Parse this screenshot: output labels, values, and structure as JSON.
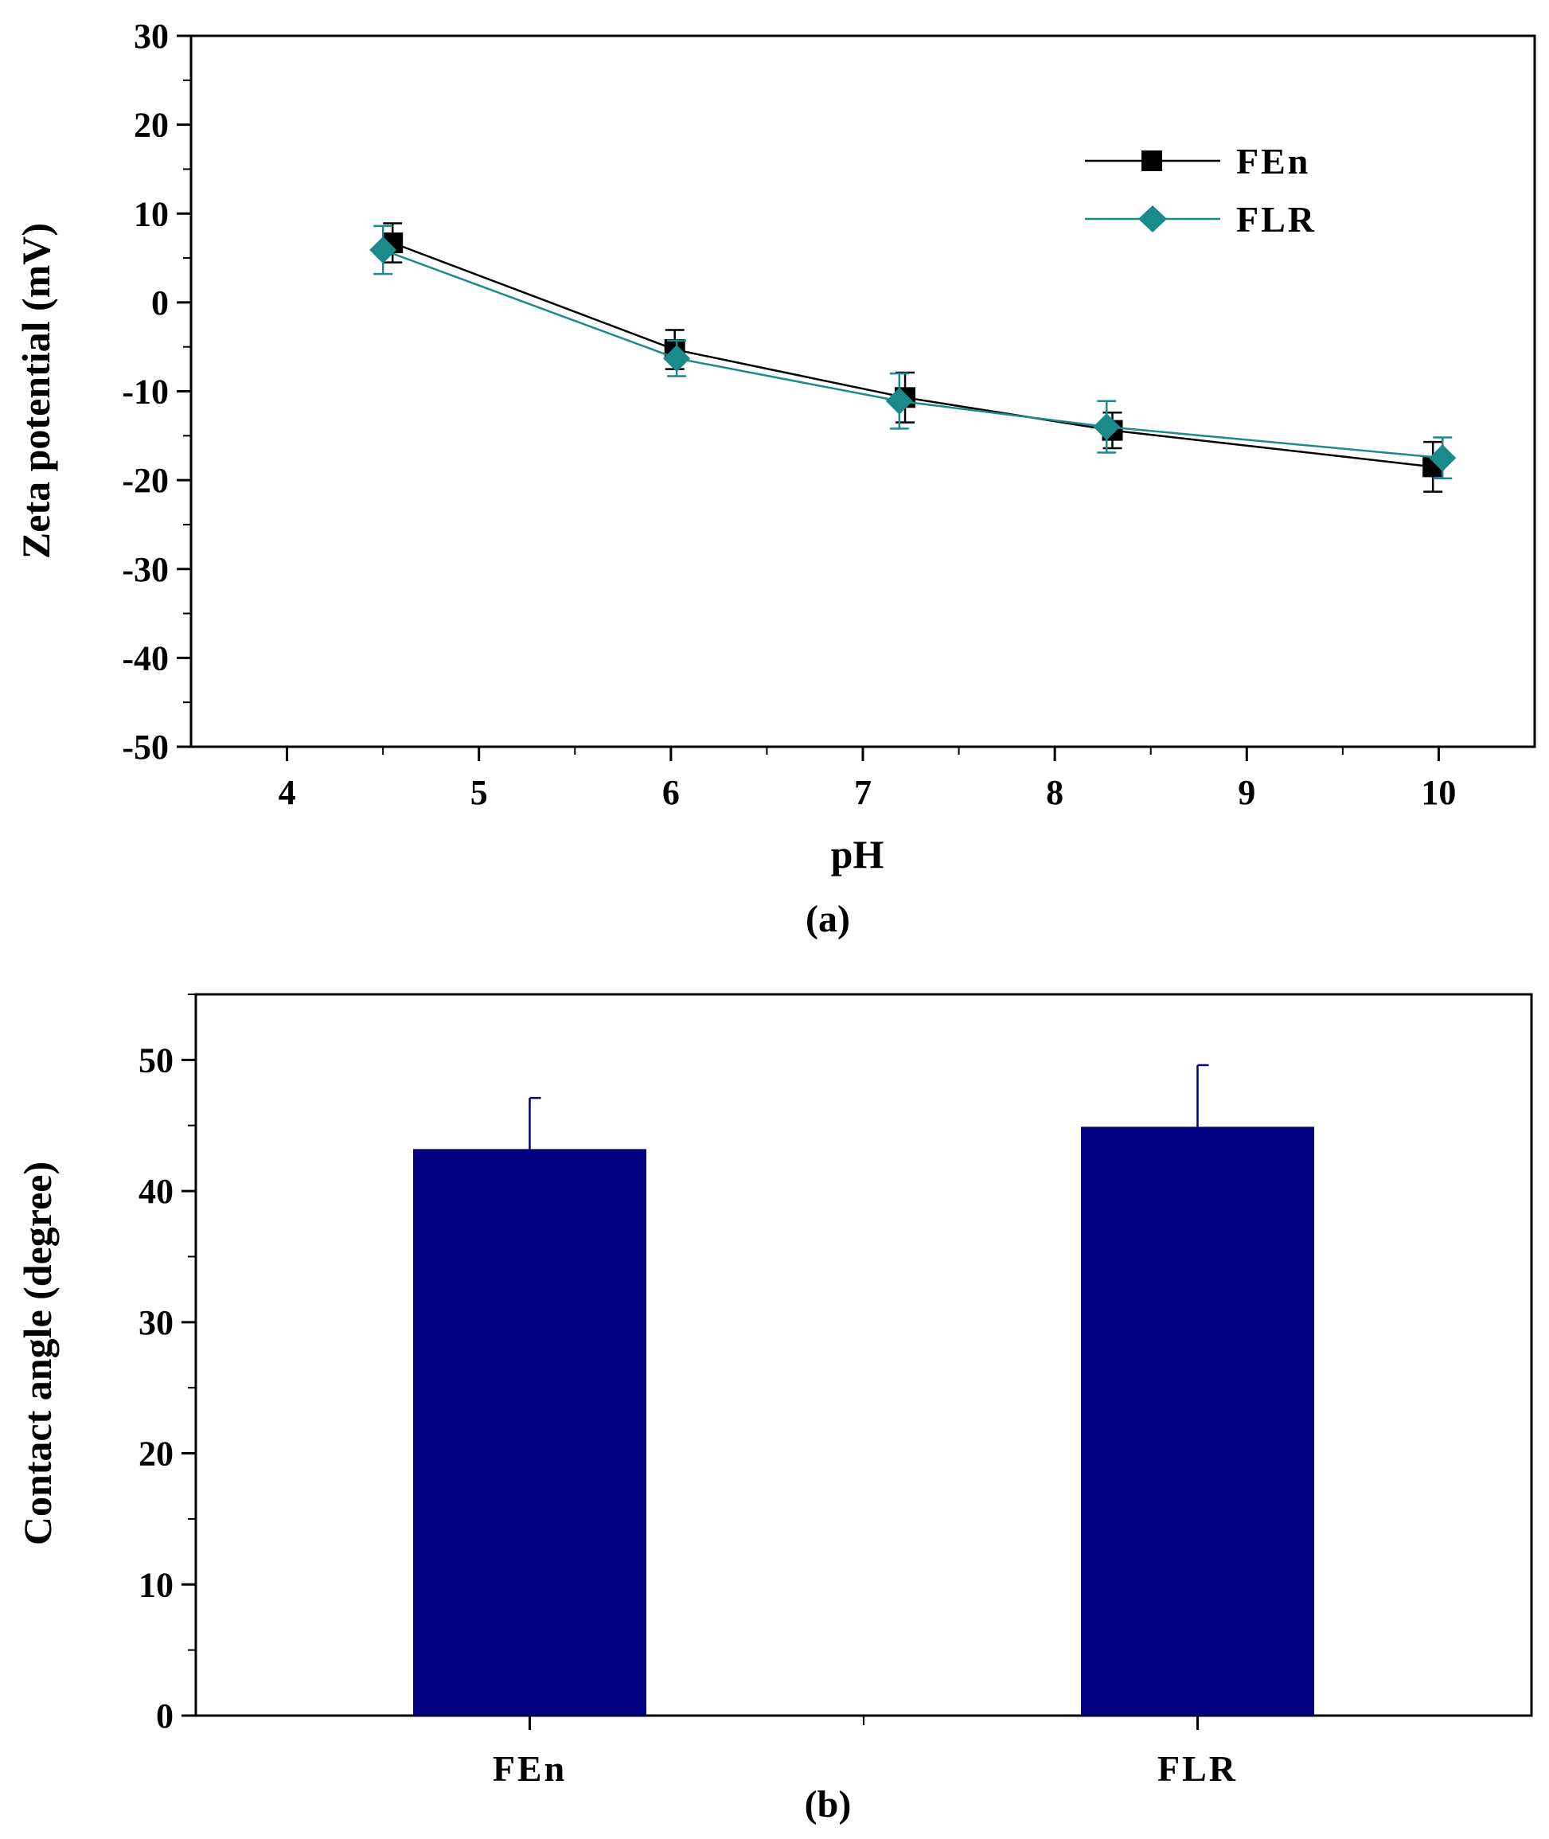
{
  "chart_data": [
    {
      "type": "line",
      "caption": "(a)",
      "xlabel": "pH",
      "ylabel": "Zeta potential (mV)",
      "xlim": [
        3.5,
        10.5
      ],
      "ylim": [
        -50,
        30
      ],
      "xticks": [
        "4",
        "5",
        "6",
        "7",
        "8",
        "9",
        "10"
      ],
      "yticks": [
        "30",
        "20",
        "10",
        "0",
        "-10",
        "-20",
        "-30",
        "-40",
        "-50"
      ],
      "legend_position": "upper-right",
      "series": [
        {
          "name": "FEn",
          "color": "#000000",
          "marker": "square",
          "x": [
            4.55,
            6.02,
            7.22,
            8.3,
            9.97
          ],
          "y": [
            6.7,
            -5.3,
            -10.7,
            -14.4,
            -18.5
          ],
          "error": [
            2.2,
            2.2,
            2.8,
            2.0,
            2.8
          ]
        },
        {
          "name": "FLR",
          "color": "#1a8a8a",
          "marker": "diamond",
          "x": [
            4.5,
            6.03,
            7.19,
            8.27,
            10.02
          ],
          "y": [
            5.9,
            -6.3,
            -11.1,
            -14.0,
            -17.5
          ],
          "error": [
            2.7,
            2.0,
            3.1,
            2.9,
            2.3
          ]
        }
      ]
    },
    {
      "type": "bar",
      "caption": "(b)",
      "xlabel": "",
      "ylabel": "Contact angle (degree)",
      "ylim": [
        0,
        55
      ],
      "yticks": [
        "0",
        "10",
        "20",
        "30",
        "40",
        "50"
      ],
      "categories": [
        "FEn",
        "FLR"
      ],
      "values": [
        43.2,
        44.9
      ],
      "error": [
        3.9,
        4.7
      ],
      "bar_color": "#000080"
    }
  ]
}
